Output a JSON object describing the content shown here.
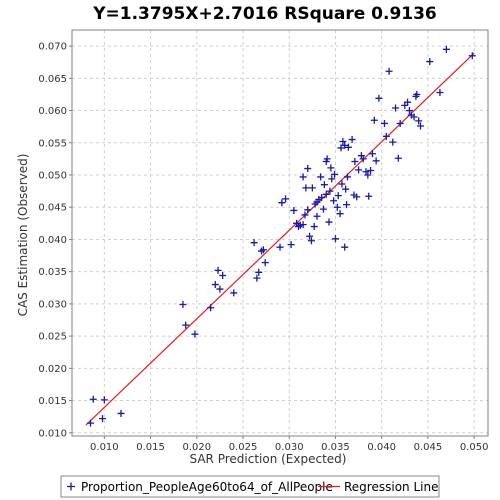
{
  "chart_data": {
    "type": "scatter",
    "title": "Y=1.3795X+2.7016    RSquare 0.9136",
    "xlabel": "SAR Prediction (Expected)",
    "ylabel": "CAS Estimation (Observed)",
    "xlim": [
      0.0065,
      0.0515
    ],
    "ylim": [
      0.0095,
      0.0725
    ],
    "x_ticks": [
      "0.010",
      "0.015",
      "0.020",
      "0.025",
      "0.030",
      "0.035",
      "0.040",
      "0.045",
      "0.050"
    ],
    "y_ticks": [
      "0.010",
      "0.015",
      "0.020",
      "0.025",
      "0.030",
      "0.035",
      "0.040",
      "0.045",
      "0.050",
      "0.055",
      "0.060",
      "0.065",
      "0.070"
    ],
    "grid": true,
    "legend_position": "bottom",
    "series": [
      {
        "name": "Proportion_PeopleAge60to64_of_AllPeople",
        "marker": "plus",
        "color": "#1a1aa6",
        "points": [
          [
            0.0085,
            0.0115
          ],
          [
            0.0088,
            0.0152
          ],
          [
            0.0098,
            0.0122
          ],
          [
            0.01,
            0.0151
          ],
          [
            0.0118,
            0.013
          ],
          [
            0.0185,
            0.0299
          ],
          [
            0.0188,
            0.0267
          ],
          [
            0.0198,
            0.0253
          ],
          [
            0.0215,
            0.0294
          ],
          [
            0.022,
            0.033
          ],
          [
            0.0223,
            0.0352
          ],
          [
            0.0225,
            0.0323
          ],
          [
            0.0228,
            0.0344
          ],
          [
            0.024,
            0.0317
          ],
          [
            0.0262,
            0.0395
          ],
          [
            0.0265,
            0.034
          ],
          [
            0.0267,
            0.0349
          ],
          [
            0.027,
            0.0382
          ],
          [
            0.0272,
            0.0384
          ],
          [
            0.0274,
            0.0364
          ],
          [
            0.029,
            0.0388
          ],
          [
            0.0292,
            0.0457
          ],
          [
            0.0296,
            0.0463
          ],
          [
            0.0302,
            0.0392
          ],
          [
            0.0305,
            0.0445
          ],
          [
            0.0308,
            0.0425
          ],
          [
            0.031,
            0.042
          ],
          [
            0.0312,
            0.0422
          ],
          [
            0.0315,
            0.0423
          ],
          [
            0.0315,
            0.0497
          ],
          [
            0.0317,
            0.0438
          ],
          [
            0.0318,
            0.048
          ],
          [
            0.032,
            0.0446
          ],
          [
            0.032,
            0.051
          ],
          [
            0.0322,
            0.0405
          ],
          [
            0.0324,
            0.0398
          ],
          [
            0.0325,
            0.048
          ],
          [
            0.0327,
            0.042
          ],
          [
            0.0328,
            0.0455
          ],
          [
            0.033,
            0.0458
          ],
          [
            0.033,
            0.0436
          ],
          [
            0.0332,
            0.0462
          ],
          [
            0.0334,
            0.0497
          ],
          [
            0.0335,
            0.0465
          ],
          [
            0.0337,
            0.0447
          ],
          [
            0.0338,
            0.0485
          ],
          [
            0.034,
            0.047
          ],
          [
            0.034,
            0.0521
          ],
          [
            0.0341,
            0.0525
          ],
          [
            0.0343,
            0.0427
          ],
          [
            0.0344,
            0.0475
          ],
          [
            0.0345,
            0.0511
          ],
          [
            0.0346,
            0.0494
          ],
          [
            0.0348,
            0.046
          ],
          [
            0.0349,
            0.0501
          ],
          [
            0.035,
            0.0401
          ],
          [
            0.0352,
            0.045
          ],
          [
            0.0353,
            0.0468
          ],
          [
            0.0355,
            0.044
          ],
          [
            0.0356,
            0.0542
          ],
          [
            0.0357,
            0.0486
          ],
          [
            0.0358,
            0.0552
          ],
          [
            0.036,
            0.0388
          ],
          [
            0.036,
            0.0546
          ],
          [
            0.0361,
            0.0478
          ],
          [
            0.0362,
            0.0454
          ],
          [
            0.0363,
            0.0497
          ],
          [
            0.0364,
            0.0543
          ],
          [
            0.0368,
            0.0555
          ],
          [
            0.037,
            0.0469
          ],
          [
            0.0371,
            0.0521
          ],
          [
            0.0373,
            0.0466
          ],
          [
            0.0375,
            0.0508
          ],
          [
            0.0378,
            0.053
          ],
          [
            0.038,
            0.0525
          ],
          [
            0.0383,
            0.0505
          ],
          [
            0.0385,
            0.05
          ],
          [
            0.0386,
            0.0467
          ],
          [
            0.0388,
            0.0507
          ],
          [
            0.039,
            0.0533
          ],
          [
            0.0392,
            0.0585
          ],
          [
            0.0394,
            0.0522
          ],
          [
            0.0397,
            0.0619
          ],
          [
            0.0403,
            0.058
          ],
          [
            0.0405,
            0.056
          ],
          [
            0.0408,
            0.0661
          ],
          [
            0.0412,
            0.0551
          ],
          [
            0.0415,
            0.0604
          ],
          [
            0.0418,
            0.0526
          ],
          [
            0.042,
            0.058
          ],
          [
            0.0425,
            0.0608
          ],
          [
            0.0428,
            0.0613
          ],
          [
            0.043,
            0.06
          ],
          [
            0.0432,
            0.0593
          ],
          [
            0.0435,
            0.059
          ],
          [
            0.0437,
            0.0622
          ],
          [
            0.0438,
            0.0625
          ],
          [
            0.044,
            0.0584
          ],
          [
            0.0442,
            0.0576
          ],
          [
            0.0452,
            0.0676
          ],
          [
            0.0463,
            0.0628
          ],
          [
            0.047,
            0.0695
          ],
          [
            0.0498,
            0.0685
          ]
        ]
      },
      {
        "name": "Regression Line",
        "color": "#e41a1c",
        "line": [
          [
            0.008,
            0.0112
          ],
          [
            0.05,
            0.0689
          ]
        ]
      }
    ]
  }
}
